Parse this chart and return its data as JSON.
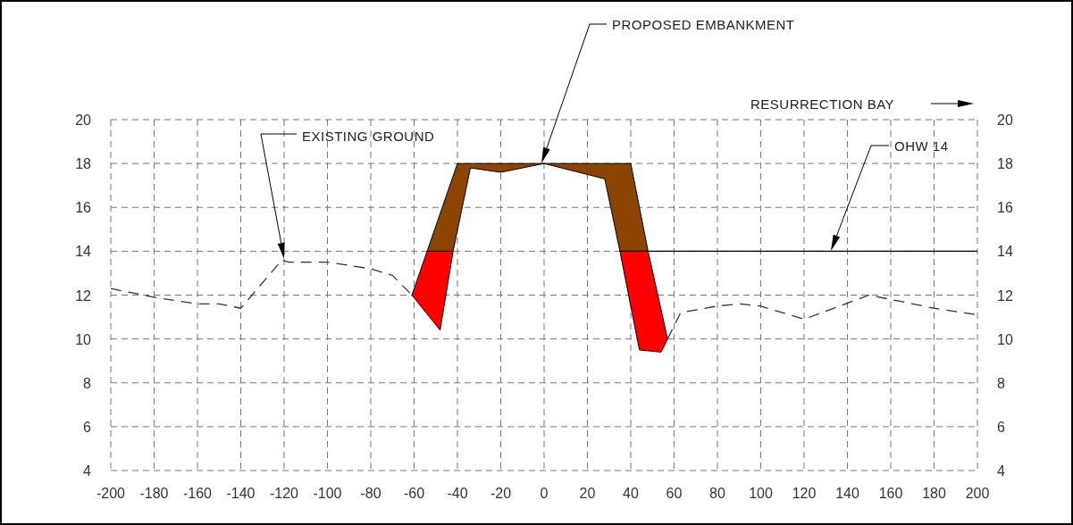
{
  "chart_data": {
    "type": "line",
    "xlim": [
      -200,
      200
    ],
    "xticks": [
      -200,
      -180,
      -160,
      -140,
      -120,
      -100,
      -80,
      -60,
      -40,
      -20,
      0,
      20,
      40,
      60,
      80,
      100,
      120,
      140,
      160,
      180,
      200
    ],
    "ylim": [
      4,
      20
    ],
    "yticks": [
      4,
      6,
      8,
      10,
      12,
      14,
      16,
      18,
      20
    ],
    "y2lim": [
      4,
      20
    ],
    "y2ticks": [
      4,
      6,
      8,
      10,
      12,
      14,
      16,
      18,
      20
    ],
    "grid": true,
    "line_style": "dashed",
    "series": [
      {
        "color": "#333333",
        "x": [
          -200,
          -180,
          -160,
          -150,
          -140,
          -121,
          -118,
          -100,
          -80,
          -70,
          -61
        ],
        "values": [
          12.3,
          11.9,
          11.6,
          11.6,
          11.4,
          13.6,
          13.5,
          13.5,
          13.2,
          12.9,
          12.0
        ]
      },
      {
        "color": "#333333",
        "x": [
          57,
          63,
          80,
          90,
          100,
          120,
          150,
          160,
          180,
          200
        ],
        "values": [
          10.0,
          11.2,
          11.5,
          11.6,
          11.5,
          10.9,
          12.0,
          11.8,
          11.4,
          11.1
        ]
      },
      {
        "type": "area",
        "color": "#8b4500",
        "x": [
          -54,
          -40,
          40,
          48,
          35,
          28,
          0,
          -20,
          -34,
          -42
        ],
        "values": [
          14,
          18,
          18,
          14,
          14,
          17.3,
          18,
          17.6,
          17.8,
          14
        ]
      },
      {
        "type": "area",
        "color": "#ff0000",
        "x": [
          -54,
          -61,
          -48,
          -42
        ],
        "values": [
          14,
          12.0,
          10.4,
          14
        ]
      },
      {
        "type": "area",
        "color": "#ff0000",
        "x": [
          35,
          44,
          54,
          57,
          48
        ],
        "values": [
          14,
          9.5,
          9.4,
          10.0,
          14
        ]
      },
      {
        "type": "line",
        "color": "#000000",
        "line_style": "solid",
        "x": [
          35,
          200
        ],
        "values": [
          14,
          14
        ]
      }
    ],
    "annotations": [
      "EXISTING GROUND",
      "PROPOSED EMBANKMENT",
      "OHW 14",
      "RESURRECTION BAY"
    ]
  }
}
